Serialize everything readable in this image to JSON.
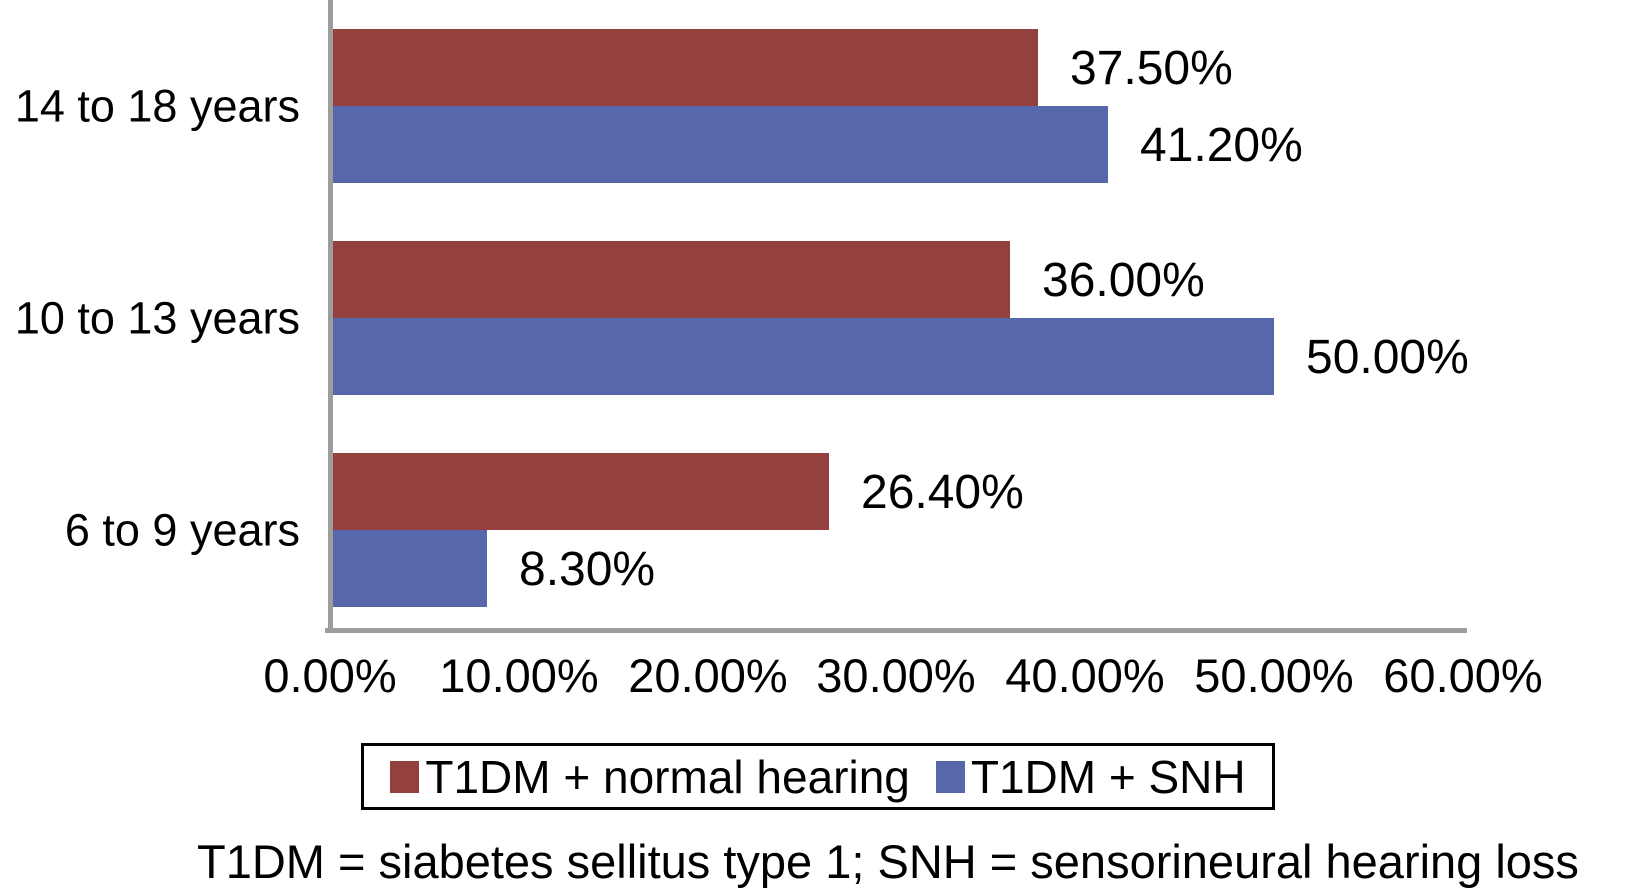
{
  "chart_data": {
    "type": "bar",
    "orientation": "horizontal",
    "title": "",
    "categories": [
      "14 to 18 years",
      "10 to 13 years",
      "6 to 9 years"
    ],
    "series": [
      {
        "name": "T1DM + normal hearing",
        "color": "#94403E",
        "values": [
          37.5,
          36.0,
          26.4
        ],
        "labels": [
          "37.50%",
          "36.00%",
          "26.40%"
        ]
      },
      {
        "name": "T1DM + SNH",
        "color": "#5667AC",
        "values": [
          41.2,
          50.0,
          8.3
        ],
        "labels": [
          "41.20%",
          "50.00%",
          "8.30%"
        ]
      }
    ],
    "x_axis": {
      "min": 0,
      "max": 60,
      "tick_step": 10,
      "tick_labels": [
        "0.00%",
        "10.00%",
        "20.00%",
        "30.00%",
        "40.00%",
        "50.00%",
        "60.00%"
      ]
    },
    "grid": false,
    "legend_position": "bottom",
    "axis_color": "#9D9D9D",
    "background_color": "#FFFFFF",
    "footnote": "T1DM = siabetes sellitus type 1; SNH = sensorineural hearing loss"
  }
}
